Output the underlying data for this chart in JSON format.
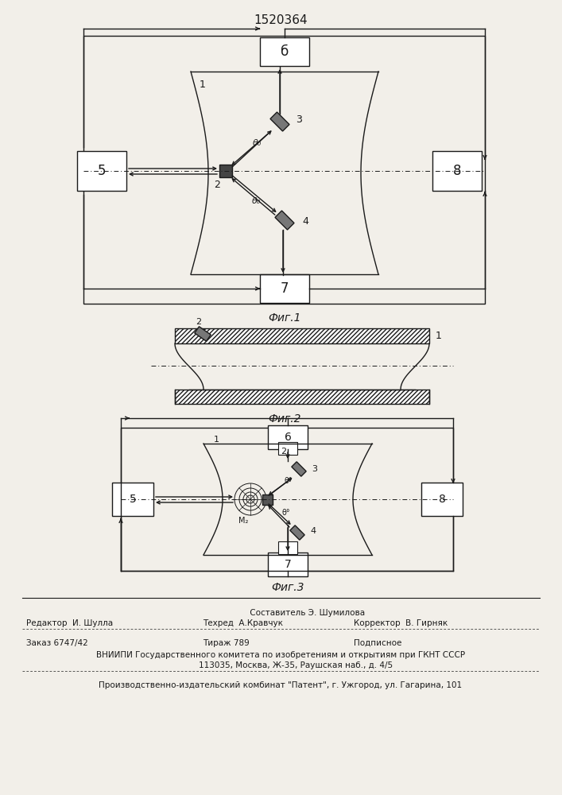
{
  "title": "1520364",
  "bg_color": "#f2efe9",
  "line_color": "#1a1a1a",
  "footer_line1": "                     Составитель Э. Шумилова",
  "footer_line2a": "Редактор  И. Шулла",
  "footer_line2b": "Техред  А.Кравчук",
  "footer_line2c": "Корректор  В. Гирняк",
  "footer_line3a": "Заказ 6747/42",
  "footer_line3b": "Тираж 789",
  "footer_line3c": "Подписное",
  "footer_line4": "ВНИИПИ Государственного комитета по изобретениям и открытиям при ГКНТ СССР",
  "footer_line5": "            113035, Москва, Ж-35, Раушская наб., д. 4/5",
  "footer_line6": "Производственно-издательский комбинат \"Патент\", г. Ужгород, ул. Гагарина, 101"
}
